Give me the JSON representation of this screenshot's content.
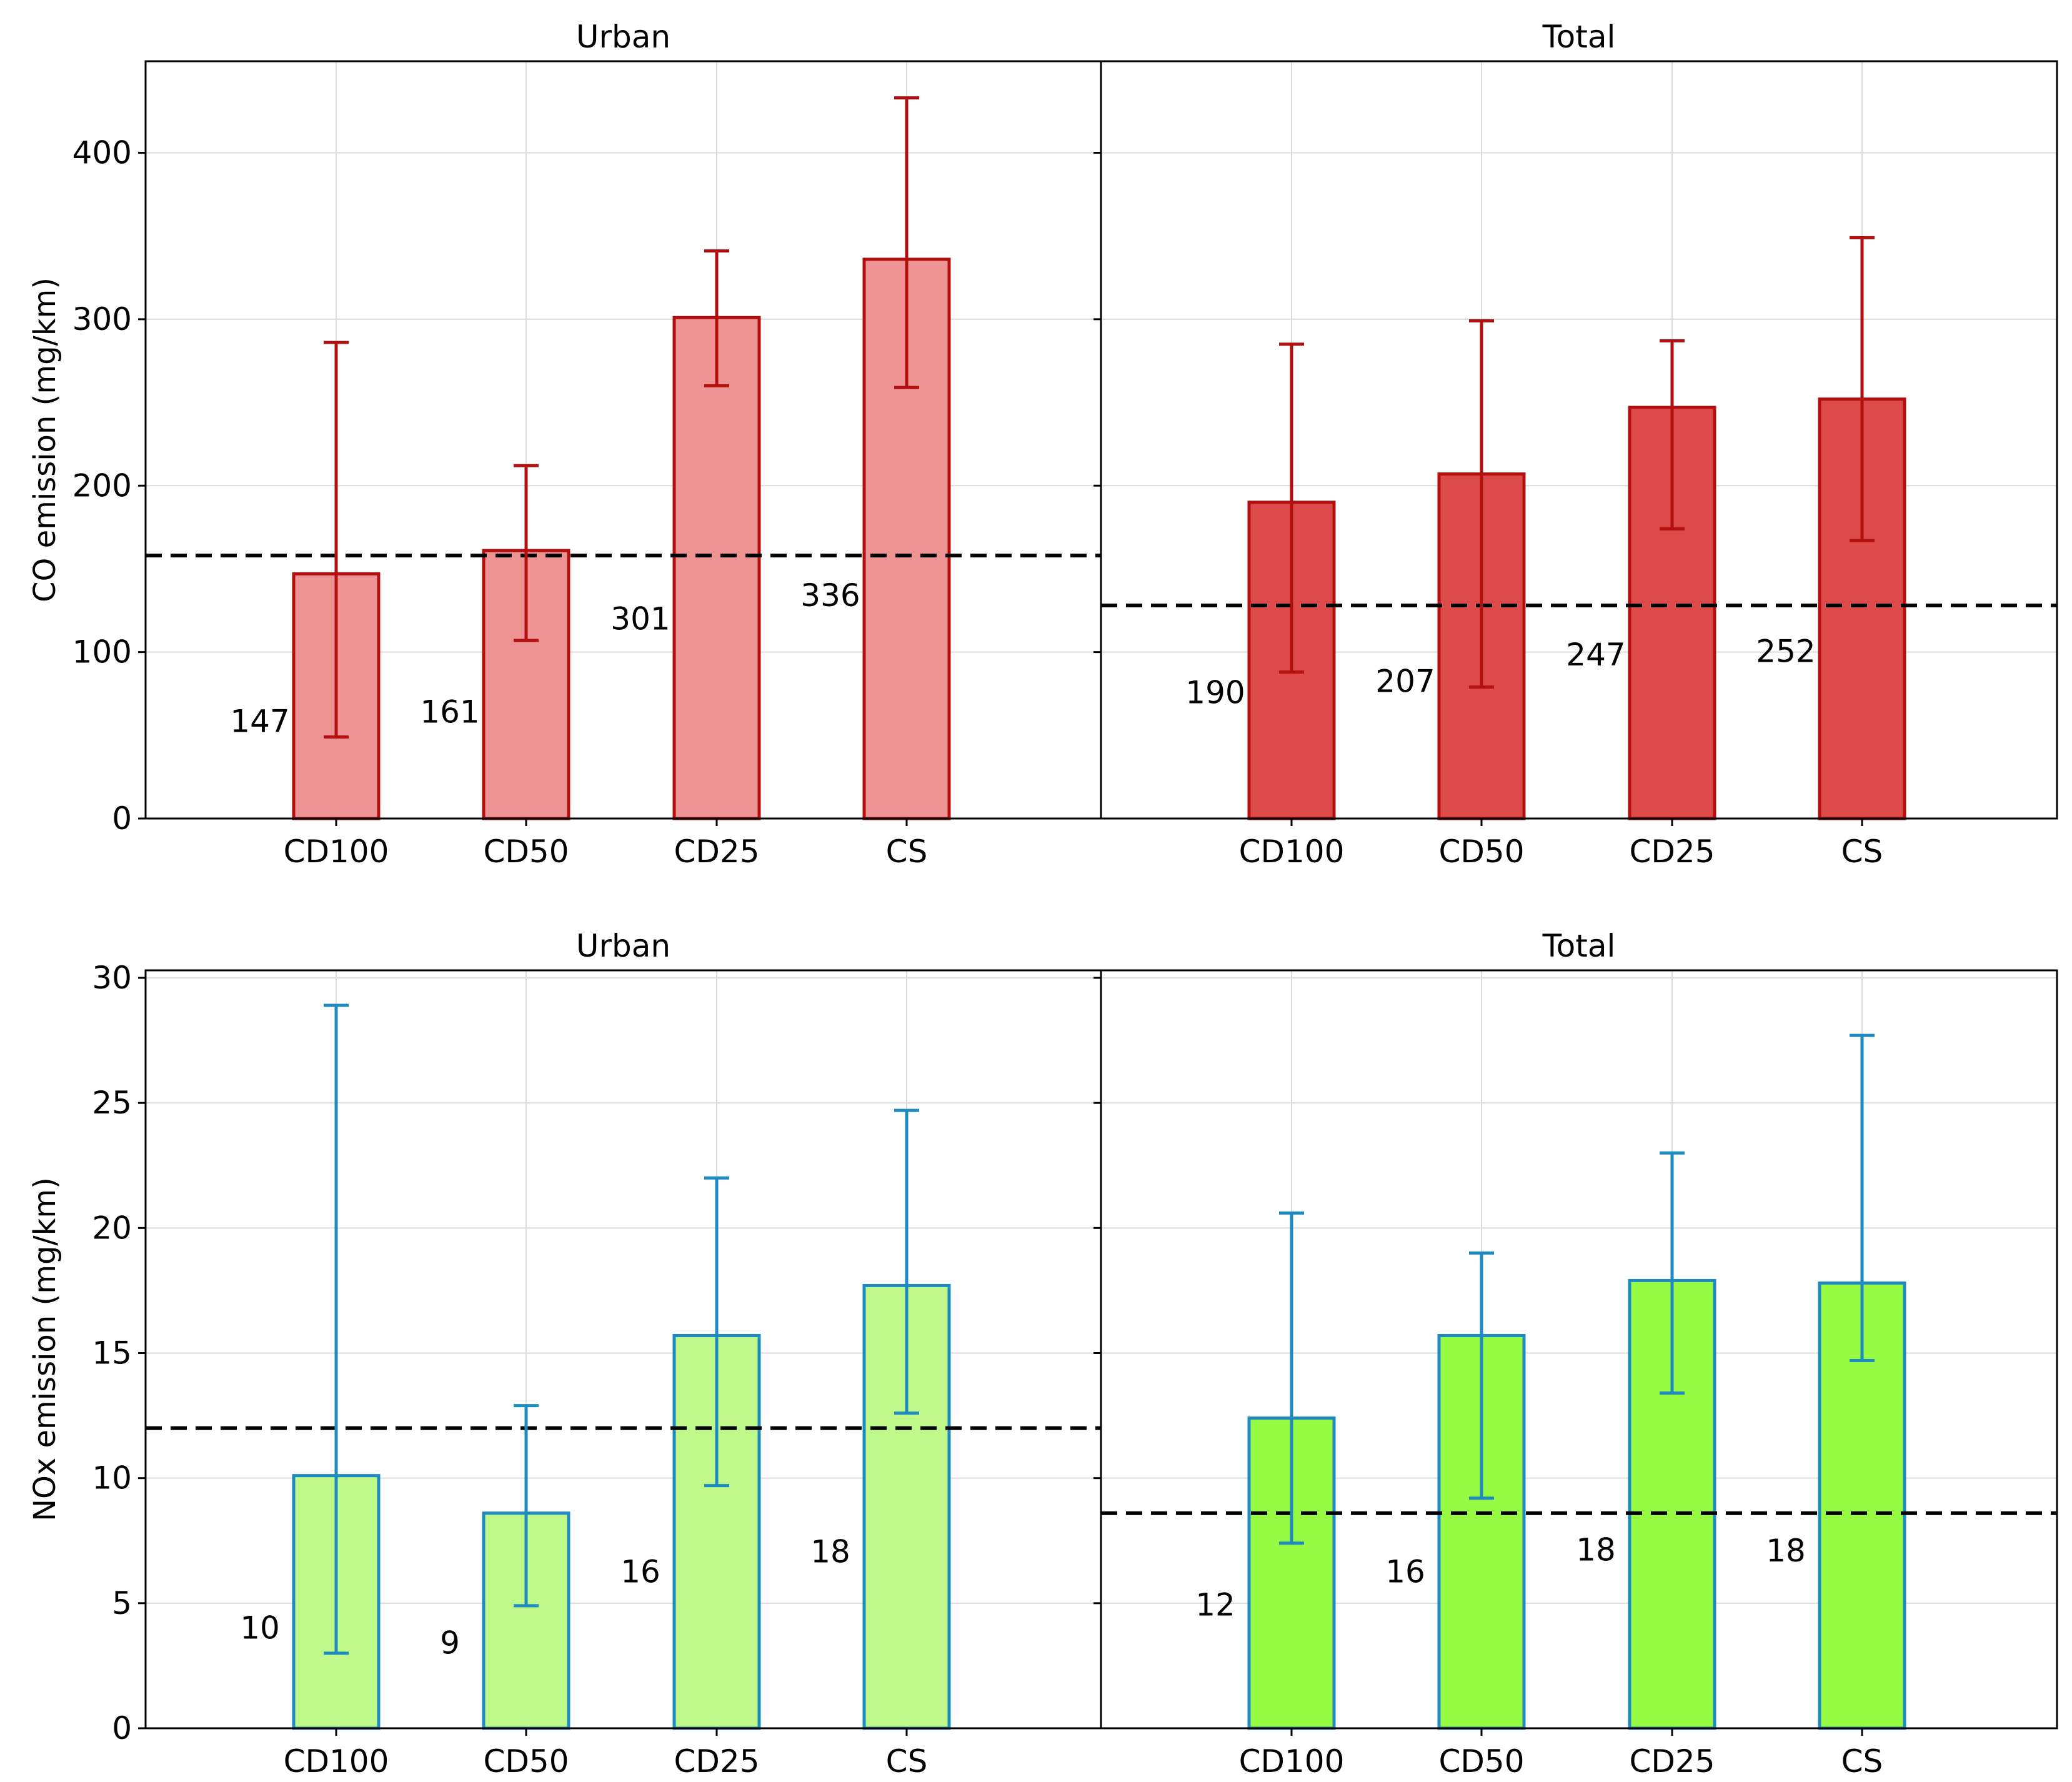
{
  "chart_data": {
    "type": "bar",
    "categories": [
      "CD100",
      "CD50",
      "CD25",
      "CS"
    ],
    "rows": [
      {
        "ylabel": "CO emission (mg/km)",
        "ylim": [
          0,
          455
        ],
        "yticks": [
          0,
          100,
          200,
          300,
          400
        ],
        "panels": [
          {
            "title": "Urban",
            "values": [
              147,
              161,
              301,
              336
            ],
            "labels": [
              "147",
              "161",
              "301",
              "336"
            ],
            "err_low": [
              49,
              107,
              260,
              259
            ],
            "err_high": [
              286,
              212,
              341,
              433
            ],
            "reference_line": 158,
            "bar_fill": "#ef9494",
            "bar_edge": "#b40f0f",
            "error_color": "#b40f0f"
          },
          {
            "title": "Total",
            "values": [
              190,
              207,
              247,
              252
            ],
            "labels": [
              "190",
              "207",
              "247",
              "252"
            ],
            "err_low": [
              88,
              79,
              174,
              167
            ],
            "err_high": [
              285,
              299,
              287,
              349
            ],
            "reference_line": 128,
            "bar_fill": "#dd4a4a",
            "bar_edge": "#b40f0f",
            "error_color": "#b40f0f"
          }
        ]
      },
      {
        "ylabel": "NOx emission (mg/km)",
        "ylim": [
          0,
          30.3
        ],
        "yticks": [
          0,
          5,
          10,
          15,
          20,
          25,
          30
        ],
        "panels": [
          {
            "title": "Urban",
            "values": [
              10.1,
              8.6,
              15.7,
              17.7
            ],
            "labels": [
              "10",
              "9",
              "16",
              "18"
            ],
            "err_low": [
              3.0,
              4.9,
              9.7,
              12.6
            ],
            "err_high": [
              28.9,
              12.9,
              22.0,
              24.7
            ],
            "reference_line": 12.0,
            "bar_fill": "#bff98a",
            "bar_edge": "#1f8ac0",
            "error_color": "#1f8ac0"
          },
          {
            "title": "Total",
            "values": [
              12.4,
              15.7,
              17.9,
              17.8
            ],
            "labels": [
              "12",
              "16",
              "18",
              "18"
            ],
            "err_low": [
              7.4,
              9.2,
              13.4,
              14.7
            ],
            "err_high": [
              20.6,
              19.0,
              23.0,
              27.7
            ],
            "reference_line": 8.6,
            "bar_fill": "#97fb43",
            "bar_edge": "#1f8ac0",
            "error_color": "#1f8ac0"
          }
        ]
      }
    ]
  }
}
